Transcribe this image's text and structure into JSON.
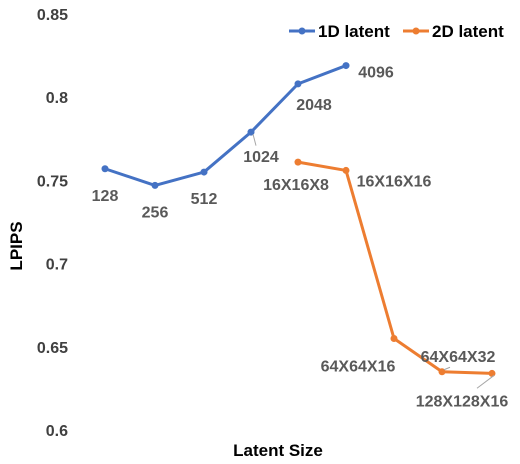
{
  "chart_data": {
    "type": "line",
    "xlabel": "Latent Size",
    "ylabel": "LPIPS",
    "ylim": [
      0.6,
      0.85
    ],
    "yticks": [
      "0.6",
      "0.65",
      "0.7",
      "0.75",
      "0.8",
      "0.85"
    ],
    "grid": false,
    "legend_position": "top-right",
    "series": [
      {
        "name": "1D latent",
        "color": "#4472C4",
        "points": [
          {
            "label": "128",
            "y": 0.757
          },
          {
            "label": "256",
            "y": 0.747
          },
          {
            "label": "512",
            "y": 0.755
          },
          {
            "label": "1024",
            "y": 0.779
          },
          {
            "label": "2048",
            "y": 0.808
          },
          {
            "label": "4096",
            "y": 0.819
          }
        ]
      },
      {
        "name": "2D latent",
        "color": "#ED7D31",
        "points": [
          {
            "label": "16X16X8",
            "y": 0.761
          },
          {
            "label": "16X16X16",
            "y": 0.756
          },
          {
            "label": "64X64X16",
            "y": 0.655
          },
          {
            "label": "64X64X32",
            "y": 0.635
          },
          {
            "label": "128X128X16",
            "y": 0.634
          }
        ]
      }
    ]
  }
}
